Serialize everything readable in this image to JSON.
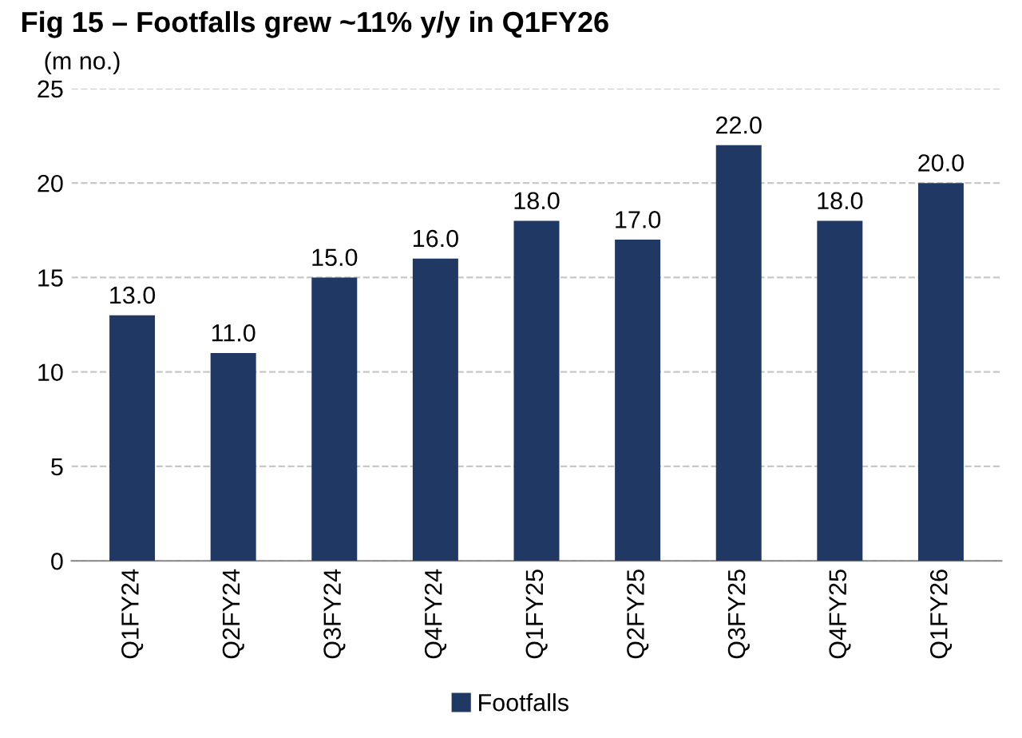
{
  "chart_data": {
    "type": "bar",
    "title": "Fig 15 – Footfalls grew ~11% y/y in Q1FY26",
    "ylabel": "(m no.)",
    "categories": [
      "Q1FY24",
      "Q2FY24",
      "Q3FY24",
      "Q4FY24",
      "Q1FY25",
      "Q2FY25",
      "Q3FY25",
      "Q4FY25",
      "Q1FY26"
    ],
    "series": [
      {
        "name": "Footfalls",
        "color": "#1f3864",
        "values": [
          13.0,
          11.0,
          15.0,
          16.0,
          18.0,
          17.0,
          22.0,
          18.0,
          20.0
        ]
      }
    ],
    "value_labels": [
      "13.0",
      "11.0",
      "15.0",
      "16.0",
      "18.0",
      "17.0",
      "22.0",
      "18.0",
      "20.0"
    ],
    "ylim": [
      0,
      25
    ],
    "yticks": [
      0,
      5,
      10,
      15,
      20,
      25
    ],
    "grid": "y",
    "legend": "bottom"
  }
}
